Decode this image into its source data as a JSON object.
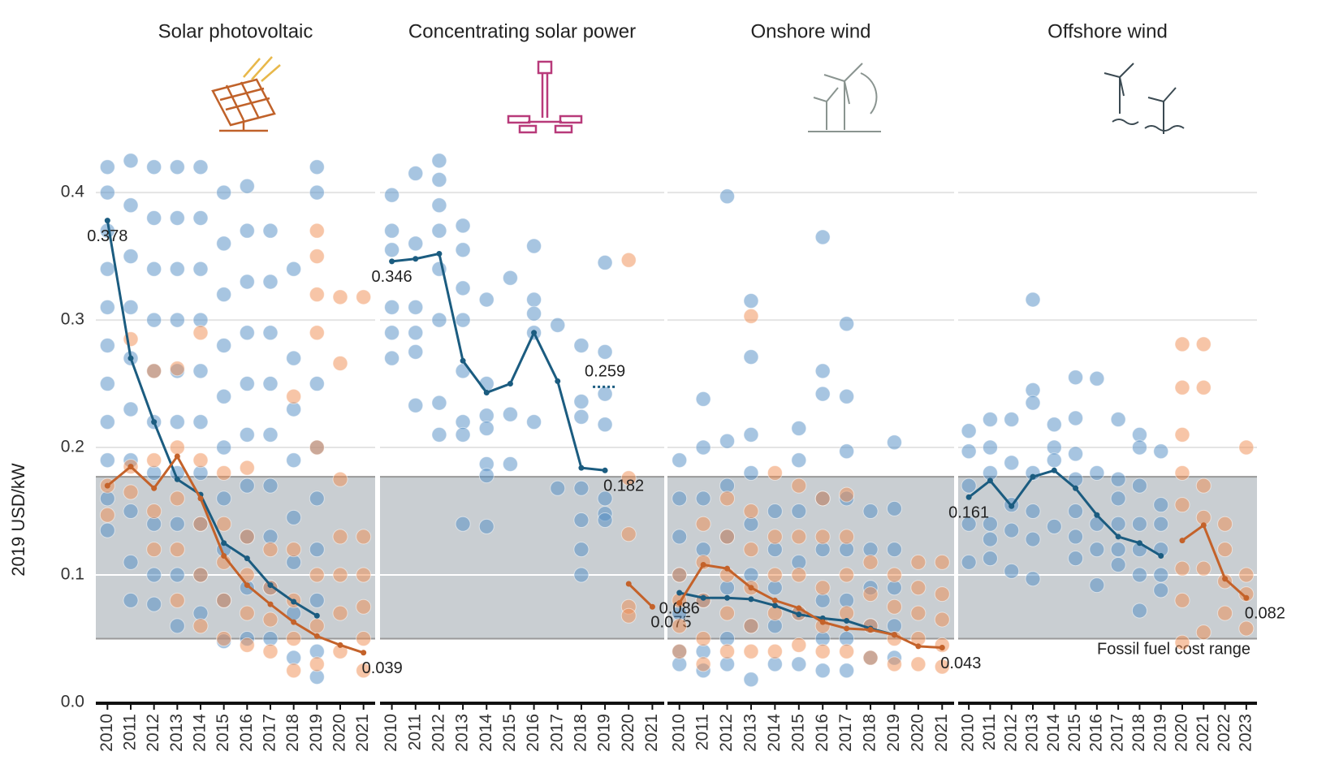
{
  "shared": {
    "ylabel": "2019 USD/kW",
    "ylim": [
      0,
      0.43
    ],
    "yticks": [
      {
        "value": 0,
        "label": "0.0"
      },
      0.1,
      0.2,
      0.3,
      0.4
    ],
    "band": [
      0.05,
      0.177
    ],
    "band_label": "Fossil fuel cost range",
    "grid": true
  },
  "chart_data": [
    {
      "type": "line",
      "title": "Solar photovoltaic",
      "categories": [
        "2010",
        "2011",
        "2012",
        "2013",
        "2014",
        "2015",
        "2016",
        "2017",
        "2018",
        "2019",
        "2020",
        "2021"
      ],
      "series": [
        {
          "color": "#1b5c80",
          "values": [
            0.378,
            0.27,
            0.22,
            0.175,
            0.163,
            0.125,
            0.113,
            0.092,
            0.079,
            0.068,
            null,
            null
          ],
          "value_labels": [
            "0.378",
            null,
            null,
            null,
            null,
            null,
            null,
            null,
            null,
            null,
            null,
            null
          ]
        },
        {
          "color": "#c4622a",
          "values": [
            0.17,
            0.185,
            0.168,
            0.193,
            0.16,
            0.115,
            0.092,
            0.077,
            0.063,
            0.052,
            0.045,
            0.039
          ],
          "value_labels": [
            null,
            null,
            null,
            null,
            null,
            null,
            null,
            null,
            null,
            null,
            null,
            "0.039"
          ]
        }
      ],
      "scatter": [
        {
          "color": "#4f8bc4",
          "values": [
            [
              0.42,
              0.4,
              0.37,
              0.34,
              0.31,
              0.28,
              0.25,
              0.22,
              0.19,
              0.16,
              0.135
            ],
            [
              0.425,
              0.39,
              0.35,
              0.31,
              0.27,
              0.23,
              0.19,
              0.15,
              0.11,
              0.08
            ],
            [
              0.42,
              0.38,
              0.34,
              0.3,
              0.26,
              0.22,
              0.18,
              0.14,
              0.1,
              0.077
            ],
            [
              0.42,
              0.38,
              0.34,
              0.3,
              0.26,
              0.22,
              0.18,
              0.14,
              0.1,
              0.06
            ],
            [
              0.42,
              0.38,
              0.34,
              0.3,
              0.26,
              0.22,
              0.18,
              0.14,
              0.1,
              0.07
            ],
            [
              0.4,
              0.36,
              0.32,
              0.28,
              0.24,
              0.2,
              0.16,
              0.12,
              0.08,
              0.048
            ],
            [
              0.405,
              0.37,
              0.33,
              0.29,
              0.25,
              0.21,
              0.17,
              0.13,
              0.09,
              0.05
            ],
            [
              0.37,
              0.33,
              0.29,
              0.25,
              0.21,
              0.17,
              0.13,
              0.09,
              0.05
            ],
            [
              0.34,
              0.27,
              0.23,
              0.19,
              0.145,
              0.11,
              0.07,
              0.035
            ],
            [
              0.42,
              0.4,
              0.25,
              0.2,
              0.16,
              0.12,
              0.08,
              0.04,
              0.02
            ],
            [],
            []
          ]
        },
        {
          "color": "#f08c50",
          "values": [
            [
              0.147,
              0.17
            ],
            [
              0.285,
              0.165,
              0.185
            ],
            [
              0.26,
              0.19,
              0.15,
              0.12
            ],
            [
              0.262,
              0.2,
              0.16,
              0.12,
              0.08
            ],
            [
              0.29,
              0.19,
              0.14,
              0.1,
              0.06
            ],
            [
              0.18,
              0.14,
              0.11,
              0.08,
              0.05
            ],
            [
              0.184,
              0.13,
              0.1,
              0.07,
              0.045
            ],
            [
              0.12,
              0.09,
              0.065,
              0.04
            ],
            [
              0.24,
              0.12,
              0.08,
              0.05,
              0.025
            ],
            [
              0.37,
              0.35,
              0.32,
              0.29,
              0.2,
              0.1,
              0.06,
              0.03
            ],
            [
              0.318,
              0.266,
              0.175,
              0.13,
              0.1,
              0.07,
              0.04
            ],
            [
              0.318,
              0.13,
              0.1,
              0.075,
              0.05,
              0.025
            ]
          ]
        }
      ]
    },
    {
      "type": "line",
      "title": "Concentrating solar power",
      "categories": [
        "2010",
        "2011",
        "2012",
        "2013",
        "2014",
        "2015",
        "2016",
        "2017",
        "2018",
        "2019",
        "2020",
        "2021"
      ],
      "series": [
        {
          "color": "#1b5c80",
          "values": [
            0.346,
            0.348,
            0.352,
            0.268,
            0.243,
            0.25,
            0.29,
            0.252,
            0.184,
            0.182,
            null,
            null
          ],
          "value_labels": [
            "0.346",
            null,
            null,
            null,
            null,
            null,
            null,
            null,
            null,
            "0.182",
            null,
            null
          ]
        },
        {
          "color": "#c4622a",
          "values": [
            null,
            null,
            null,
            null,
            null,
            null,
            null,
            null,
            null,
            null,
            0.093,
            0.075
          ],
          "value_labels": [
            null,
            null,
            null,
            null,
            null,
            null,
            null,
            null,
            null,
            null,
            null,
            "0.075"
          ]
        },
        {
          "color": "#1b5c80",
          "style": "dotted",
          "values": [
            null,
            null,
            null,
            null,
            null,
            null,
            null,
            null,
            null,
            0.259,
            null,
            null
          ],
          "value_labels": [
            null,
            null,
            null,
            null,
            null,
            null,
            null,
            null,
            null,
            "0.259",
            null,
            null
          ]
        }
      ],
      "scatter": [
        {
          "color": "#4f8bc4",
          "values": [
            [
              0.398,
              0.37,
              0.355,
              0.31,
              0.29,
              0.27
            ],
            [
              0.415,
              0.36,
              0.31,
              0.29,
              0.275,
              0.233
            ],
            [
              0.425,
              0.41,
              0.39,
              0.37,
              0.34,
              0.3,
              0.235,
              0.21
            ],
            [
              0.374,
              0.355,
              0.325,
              0.3,
              0.26,
              0.22,
              0.21,
              0.14
            ],
            [
              0.316,
              0.25,
              0.225,
              0.215,
              0.187,
              0.178,
              0.138
            ],
            [
              0.333,
              0.226,
              0.187
            ],
            [
              0.358,
              0.316,
              0.305,
              0.29,
              0.22
            ],
            [
              0.296,
              0.168
            ],
            [
              0.28,
              0.236,
              0.224,
              0.168,
              0.143,
              0.12,
              0.1
            ],
            [
              0.345,
              0.275,
              0.242,
              0.218,
              0.16,
              0.148,
              0.143
            ],
            [],
            []
          ]
        },
        {
          "color": "#f08c50",
          "values": [
            [],
            [],
            [],
            [],
            [],
            [],
            [],
            [],
            [],
            [],
            [
              0.347,
              0.176,
              0.132,
              0.075,
              0.068
            ],
            []
          ]
        }
      ]
    },
    {
      "type": "line",
      "title": "Onshore wind",
      "categories": [
        "2010",
        "2011",
        "2012",
        "2013",
        "2014",
        "2015",
        "2016",
        "2017",
        "2018",
        "2019",
        "2020",
        "2021"
      ],
      "series": [
        {
          "color": "#1b5c80",
          "values": [
            0.086,
            0.082,
            0.082,
            0.081,
            0.076,
            0.069,
            0.066,
            0.064,
            0.058,
            0.053,
            null,
            null
          ],
          "value_labels": [
            "0.086",
            null,
            null,
            null,
            null,
            null,
            null,
            null,
            null,
            null,
            null,
            null
          ]
        },
        {
          "color": "#c4622a",
          "values": [
            0.078,
            0.108,
            0.105,
            0.09,
            0.08,
            0.074,
            0.063,
            0.058,
            0.057,
            0.053,
            0.044,
            0.043
          ],
          "value_labels": [
            null,
            null,
            null,
            null,
            null,
            null,
            null,
            null,
            null,
            null,
            null,
            "0.043"
          ]
        }
      ],
      "scatter": [
        {
          "color": "#4f8bc4",
          "values": [
            [
              0.19,
              0.16,
              0.13,
              0.1,
              0.07,
              0.04,
              0.03
            ],
            [
              0.238,
              0.2,
              0.16,
              0.12,
              0.08,
              0.04,
              0.025
            ],
            [
              0.397,
              0.205,
              0.17,
              0.13,
              0.09,
              0.05,
              0.03
            ],
            [
              0.315,
              0.271,
              0.21,
              0.18,
              0.14,
              0.1,
              0.06,
              0.018
            ],
            [
              0.15,
              0.12,
              0.09,
              0.06,
              0.03
            ],
            [
              0.215,
              0.19,
              0.15,
              0.11,
              0.07,
              0.03
            ],
            [
              0.365,
              0.26,
              0.242,
              0.16,
              0.12,
              0.08,
              0.05,
              0.025
            ],
            [
              0.297,
              0.24,
              0.197,
              0.16,
              0.12,
              0.08,
              0.05,
              0.025
            ],
            [
              0.15,
              0.12,
              0.09,
              0.06,
              0.035
            ],
            [
              0.204,
              0.152,
              0.12,
              0.09,
              0.06,
              0.035
            ],
            [],
            []
          ]
        },
        {
          "color": "#f08c50",
          "values": [
            [
              0.1,
              0.08,
              0.06,
              0.04
            ],
            [
              0.14,
              0.11,
              0.08,
              0.05,
              0.03
            ],
            [
              0.16,
              0.13,
              0.1,
              0.07,
              0.04
            ],
            [
              0.303,
              0.15,
              0.12,
              0.09,
              0.06,
              0.04
            ],
            [
              0.18,
              0.13,
              0.1,
              0.07,
              0.04
            ],
            [
              0.17,
              0.13,
              0.1,
              0.07,
              0.045
            ],
            [
              0.16,
              0.13,
              0.09,
              0.06,
              0.04
            ],
            [
              0.163,
              0.13,
              0.1,
              0.07,
              0.04
            ],
            [
              0.11,
              0.085,
              0.06,
              0.035
            ],
            [
              0.1,
              0.075,
              0.05,
              0.03
            ],
            [
              0.11,
              0.09,
              0.07,
              0.05,
              0.03
            ],
            [
              0.11,
              0.085,
              0.065,
              0.045,
              0.028
            ]
          ]
        }
      ]
    },
    {
      "type": "line",
      "title": "Offshore wind",
      "categories": [
        "2010",
        "2011",
        "2012",
        "2013",
        "2014",
        "2015",
        "2016",
        "2017",
        "2018",
        "2019",
        "2020",
        "2021",
        "2022",
        "2023"
      ],
      "series": [
        {
          "color": "#1b5c80",
          "values": [
            0.161,
            0.174,
            0.154,
            0.177,
            0.182,
            0.168,
            0.147,
            0.13,
            0.125,
            0.115,
            null,
            null,
            null,
            null
          ],
          "value_labels": [
            "0.161",
            null,
            null,
            null,
            null,
            null,
            null,
            null,
            null,
            null,
            null,
            null,
            null,
            null
          ]
        },
        {
          "color": "#c4622a",
          "values": [
            null,
            null,
            null,
            null,
            null,
            null,
            null,
            null,
            null,
            null,
            0.127,
            0.139,
            0.097,
            0.082
          ],
          "value_labels": [
            null,
            null,
            null,
            null,
            null,
            null,
            null,
            null,
            null,
            null,
            null,
            null,
            null,
            "0.082"
          ]
        }
      ],
      "scatter": [
        {
          "color": "#4f8bc4",
          "values": [
            [
              0.213,
              0.197,
              0.17,
              0.14,
              0.11
            ],
            [
              0.222,
              0.2,
              0.18,
              0.14,
              0.128,
              0.113
            ],
            [
              0.222,
              0.188,
              0.155,
              0.135,
              0.103
            ],
            [
              0.316,
              0.245,
              0.235,
              0.18,
              0.15,
              0.128,
              0.097
            ],
            [
              0.218,
              0.2,
              0.19,
              0.138
            ],
            [
              0.255,
              0.223,
              0.195,
              0.175,
              0.15,
              0.13,
              0.113
            ],
            [
              0.254,
              0.18,
              0.14,
              0.12,
              0.092
            ],
            [
              0.222,
              0.175,
              0.16,
              0.14,
              0.12,
              0.108
            ],
            [
              0.21,
              0.2,
              0.17,
              0.14,
              0.12,
              0.1,
              0.072
            ],
            [
              0.197,
              0.155,
              0.14,
              0.12,
              0.1,
              0.088
            ],
            [],
            [],
            [],
            []
          ]
        },
        {
          "color": "#f08c50",
          "values": [
            [],
            [],
            [],
            [],
            [],
            [],
            [],
            [],
            [],
            [],
            [
              0.281,
              0.247,
              0.21,
              0.18,
              0.155,
              0.105,
              0.08,
              0.047
            ],
            [
              0.281,
              0.247,
              0.17,
              0.145,
              0.105,
              0.055
            ],
            [
              0.14,
              0.12,
              0.095,
              0.07
            ],
            [
              0.2,
              0.1,
              0.085,
              0.058
            ]
          ]
        }
      ]
    }
  ]
}
